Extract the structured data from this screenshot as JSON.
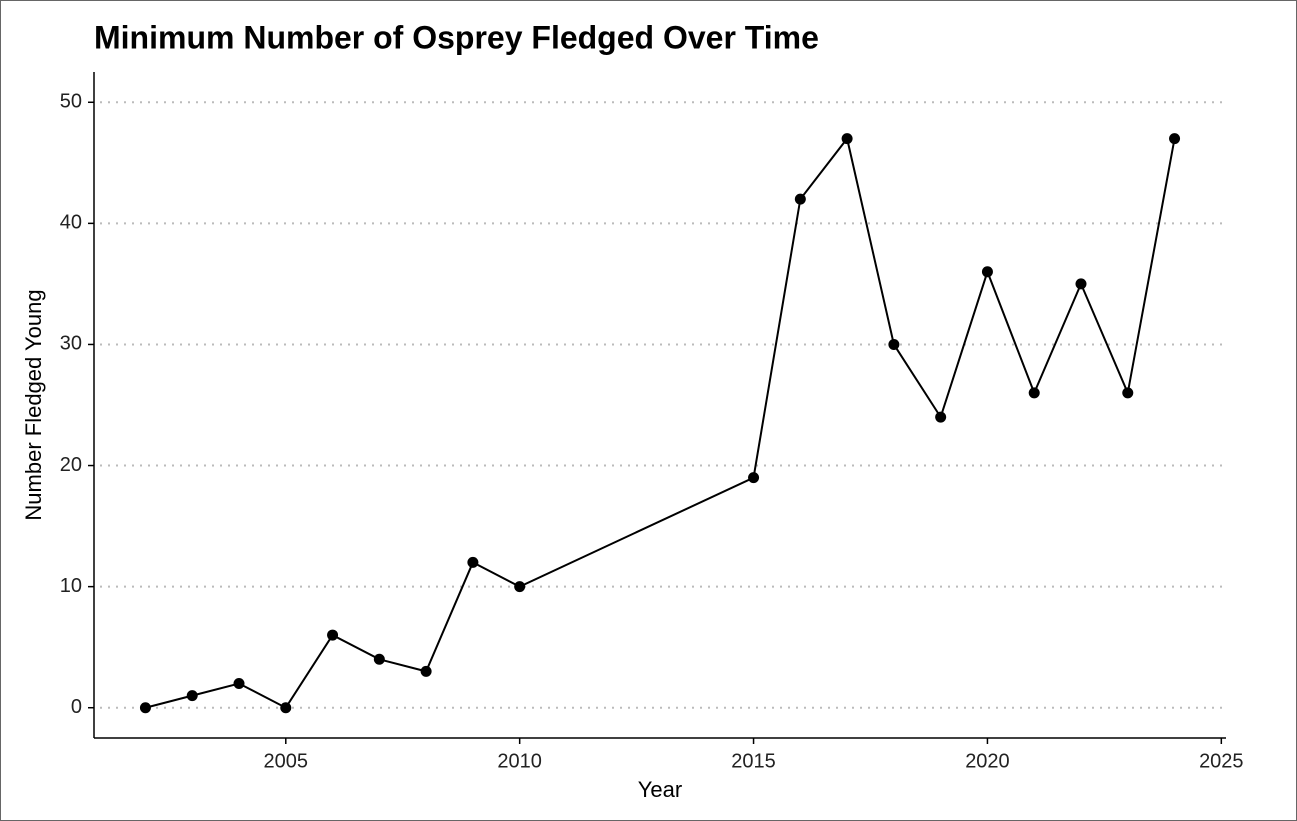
{
  "chart_data": {
    "type": "line",
    "title": "Minimum Number of Osprey Fledged Over Time",
    "xlabel": "Year",
    "ylabel": "Number Fledged Young",
    "x": [
      2002,
      2003,
      2004,
      2005,
      2006,
      2007,
      2008,
      2009,
      2010,
      2015,
      2016,
      2017,
      2018,
      2019,
      2020,
      2021,
      2022,
      2023,
      2024
    ],
    "values": [
      0,
      1,
      2,
      0,
      6,
      4,
      3,
      12,
      10,
      19,
      42,
      47,
      30,
      24,
      36,
      26,
      35,
      26,
      47
    ],
    "color": "#000000",
    "xlim": [
      2000.9,
      2025.1
    ],
    "xticks": [
      2005,
      2010,
      2015,
      2020,
      2025
    ],
    "ylim": [
      -2.5,
      52.5
    ],
    "yticks": [
      0,
      10,
      20,
      30,
      40,
      50
    ],
    "grid": true
  }
}
